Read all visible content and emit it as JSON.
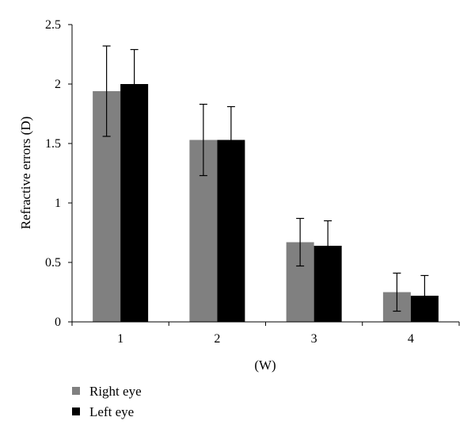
{
  "chart_data": {
    "type": "bar",
    "title": "",
    "xlabel": "(W)",
    "ylabel": "Refractive errors (D)",
    "ylim": [
      0,
      2.5
    ],
    "yticks": [
      "0",
      "0.5",
      "1",
      "1.5",
      "2",
      "2.5"
    ],
    "categories": [
      "1",
      "2",
      "3",
      "4"
    ],
    "grid": false,
    "legend_position": "bottom-left",
    "series": [
      {
        "name": "Right eye",
        "color": "#808080",
        "values": [
          1.94,
          1.53,
          0.67,
          0.25
        ],
        "errors": [
          0.38,
          0.3,
          0.2,
          0.16
        ]
      },
      {
        "name": "Left eye",
        "color": "#000000",
        "values": [
          2.0,
          1.53,
          0.64,
          0.22
        ],
        "errors": [
          0.29,
          0.28,
          0.21,
          0.17
        ]
      }
    ]
  }
}
